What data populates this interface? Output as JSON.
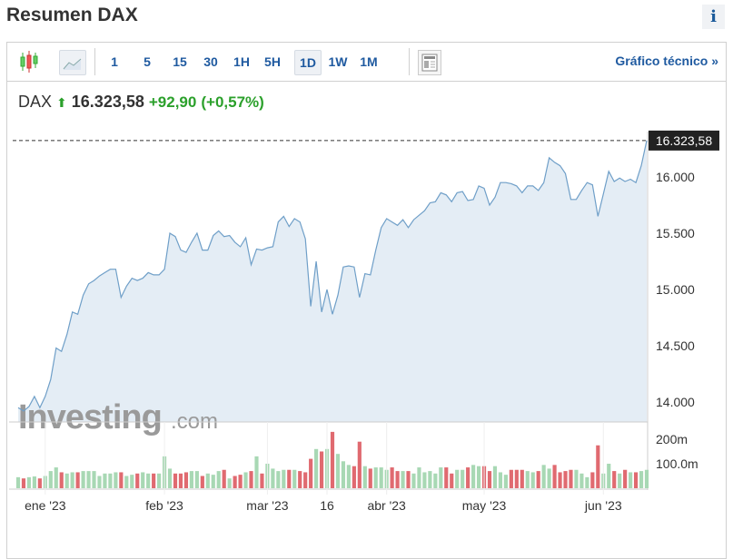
{
  "header": {
    "title": "Resumen DAX",
    "info_label": "i"
  },
  "toolbar": {
    "intervals": [
      "1",
      "5",
      "15",
      "30",
      "1H",
      "5H",
      "1D",
      "1W",
      "1M"
    ],
    "selected": "1D",
    "technical_link": "Gráfico técnico »"
  },
  "quote": {
    "symbol": "DAX",
    "price": "16.323,58",
    "change": "+92,90",
    "change_pct": "(+0,57%)",
    "direction": "up"
  },
  "watermark": "Investing.com",
  "colors": {
    "line": "#6f9fc8",
    "fill": "#e4edf5",
    "up": "#a8d8b4",
    "down": "#e06a70",
    "accent": "#1f5aa0"
  },
  "chart_data": {
    "type": "line",
    "price_label": "16.323,58",
    "y_ticks": [
      "14.000",
      "14.500",
      "15.000",
      "15.500",
      "16.000"
    ],
    "y_tick_values": [
      14000,
      14500,
      15000,
      15500,
      16000
    ],
    "volume_ticks": [
      "100.0m",
      "200m"
    ],
    "volume_tick_values": [
      100,
      200
    ],
    "x_labels": [
      {
        "label": "ene '23",
        "index": 5
      },
      {
        "label": "feb '23",
        "index": 27
      },
      {
        "label": "mar '23",
        "index": 46
      },
      {
        "label": "16",
        "index": 57
      },
      {
        "label": "abr '23",
        "index": 68
      },
      {
        "label": "may '23",
        "index": 86
      },
      {
        "label": "jun '23",
        "index": 108
      }
    ],
    "prices": [
      13950,
      13920,
      13960,
      14050,
      13950,
      14050,
      14200,
      14480,
      14450,
      14600,
      14800,
      14780,
      14950,
      15050,
      15080,
      15120,
      15150,
      15180,
      15180,
      14930,
      15030,
      15100,
      15080,
      15100,
      15150,
      15130,
      15130,
      15180,
      15500,
      15470,
      15350,
      15330,
      15420,
      15500,
      15350,
      15350,
      15480,
      15520,
      15470,
      15480,
      15420,
      15380,
      15460,
      15220,
      15360,
      15350,
      15370,
      15380,
      15600,
      15650,
      15560,
      15630,
      15600,
      15450,
      14850,
      15250,
      14800,
      15000,
      14780,
      14950,
      15200,
      15210,
      15200,
      14930,
      15140,
      15130,
      15350,
      15550,
      15630,
      15600,
      15570,
      15620,
      15550,
      15620,
      15660,
      15700,
      15770,
      15780,
      15860,
      15840,
      15780,
      15860,
      15870,
      15790,
      15800,
      15920,
      15900,
      15750,
      15820,
      15950,
      15950,
      15940,
      15920,
      15860,
      15920,
      15920,
      15880,
      15950,
      16170,
      16130,
      16100,
      16030,
      15800,
      15800,
      15880,
      15950,
      15930,
      15650,
      15850,
      16050,
      15960,
      15990,
      15960,
      15980,
      15950,
      16100,
      16323.58
    ],
    "volumes_m": [
      45,
      40,
      45,
      48,
      40,
      50,
      70,
      85,
      65,
      60,
      65,
      65,
      70,
      70,
      70,
      50,
      60,
      60,
      65,
      65,
      50,
      55,
      60,
      65,
      60,
      60,
      60,
      130,
      80,
      60,
      60,
      65,
      70,
      70,
      50,
      60,
      55,
      70,
      75,
      40,
      50,
      55,
      65,
      70,
      130,
      60,
      100,
      80,
      70,
      75,
      75,
      75,
      70,
      65,
      120,
      160,
      150,
      160,
      230,
      140,
      110,
      95,
      90,
      190,
      90,
      80,
      85,
      85,
      75,
      85,
      70,
      70,
      70,
      60,
      85,
      65,
      70,
      60,
      85,
      85,
      60,
      75,
      75,
      85,
      95,
      90,
      90,
      70,
      90,
      65,
      55,
      75,
      75,
      75,
      70,
      65,
      70,
      95,
      80,
      95,
      65,
      70,
      75,
      75,
      60,
      45,
      65,
      175,
      60,
      100,
      70,
      60,
      75,
      65,
      65,
      70,
      75
    ]
  }
}
